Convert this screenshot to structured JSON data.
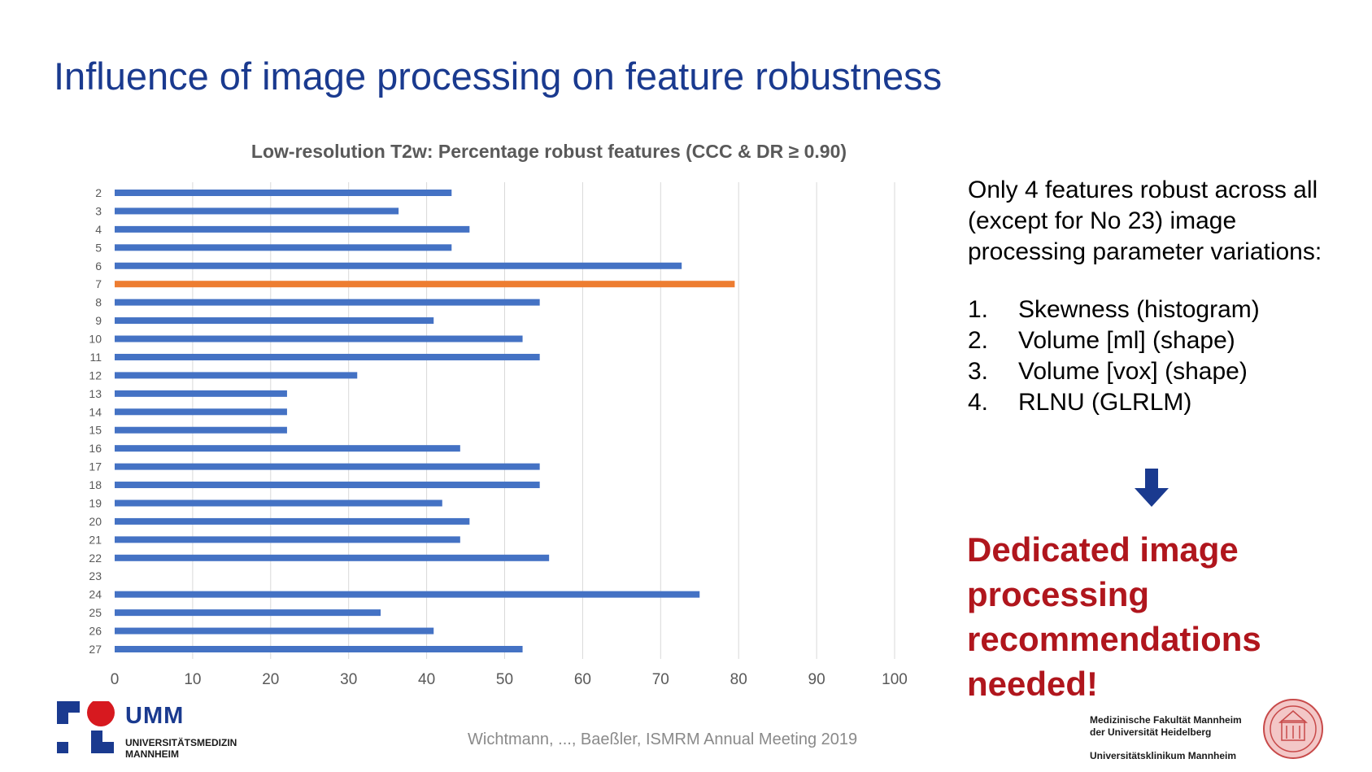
{
  "slide": {
    "title": "Influence of image processing on feature robustness",
    "citation": "Wichtmann, ..., Baeßler, ISMRM Annual Meeting 2019"
  },
  "chart_data": {
    "type": "bar",
    "orientation": "horizontal",
    "title": "Low-resolution T2w: Percentage robust features (CCC & DR ≥ 0.90)",
    "xlabel": "",
    "ylabel": "",
    "xlim": [
      0,
      100
    ],
    "x_ticks": [
      "0",
      "10",
      "20",
      "30",
      "40",
      "50",
      "60",
      "70",
      "80",
      "90",
      "100"
    ],
    "grid": true,
    "categories": [
      "2",
      "3",
      "4",
      "5",
      "6",
      "7",
      "8",
      "9",
      "10",
      "11",
      "12",
      "13",
      "14",
      "15",
      "16",
      "17",
      "18",
      "19",
      "20",
      "21",
      "22",
      "23",
      "24",
      "25",
      "26",
      "27"
    ],
    "values": [
      43.2,
      36.4,
      45.5,
      43.2,
      72.7,
      79.5,
      54.5,
      40.9,
      52.3,
      54.5,
      31.1,
      22.1,
      22.1,
      22.1,
      44.3,
      54.5,
      54.5,
      42.0,
      45.5,
      44.3,
      55.7,
      0,
      75.0,
      34.1,
      40.9,
      52.3
    ],
    "highlight_category": "7",
    "colors": {
      "default": "#4472c4",
      "highlight": "#ed7d31"
    }
  },
  "panel": {
    "intro": "Only 4 features robust across all (except for No 23) image processing parameter variations:",
    "features": [
      {
        "num": "1.",
        "label": "Skewness (histogram)"
      },
      {
        "num": "2.",
        "label": "Volume [ml] (shape)"
      },
      {
        "num": "3.",
        "label": "Volume [vox] (shape)"
      },
      {
        "num": "4.",
        "label": "RLNU (GLRLM)"
      }
    ],
    "arrow_icon": "arrow-down-icon",
    "conclusion": "Dedicated image processing recommendations needed!"
  },
  "logos": {
    "umm_name": "UMM",
    "umm_line1": "UNIVERSITÄTSMEDIZIN",
    "umm_line2": "MANNHEIM",
    "faculty_line1": "Medizinische Fakultät Mannheim",
    "faculty_line2": "der Universität Heidelberg",
    "klinikum": "Universitätsklinikum Mannheim"
  },
  "colors": {
    "title": "#1a3a8f",
    "conclusion": "#b0161d",
    "umm_red": "#d7191f",
    "umm_blue": "#1a3a8f"
  }
}
